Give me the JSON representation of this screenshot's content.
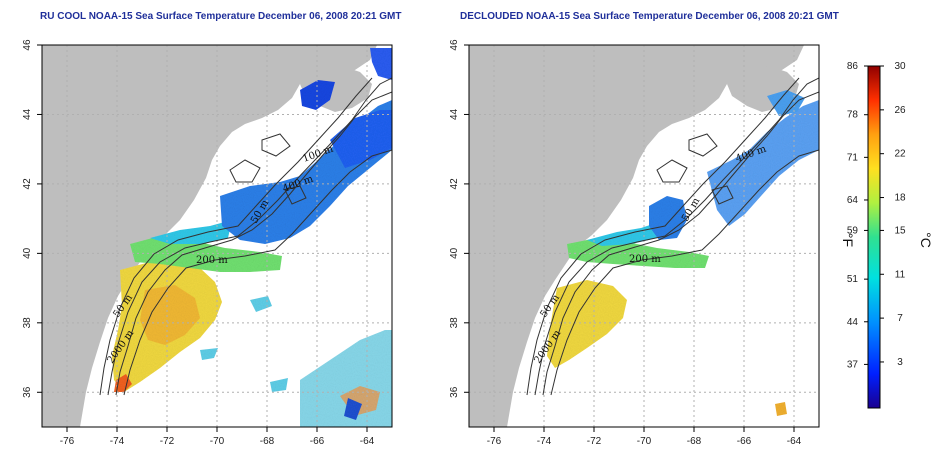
{
  "panels": [
    {
      "id": "left",
      "title": "RU COOL NOAA-15 Sea Surface Temperature December 06, 2008 20:21 GMT",
      "contour_labels": [
        {
          "text": "200 m"
        },
        {
          "text": "50 m"
        },
        {
          "text": "2000 m"
        },
        {
          "text": "100 m"
        },
        {
          "text": "400 m"
        },
        {
          "text": "50 m"
        }
      ]
    },
    {
      "id": "right",
      "title": "DECLOUDED NOAA-15 Sea Surface Temperature December 06, 2008 20:21 GMT",
      "contour_labels": [
        {
          "text": "200 m"
        },
        {
          "text": "50 m"
        },
        {
          "text": "2000 m"
        },
        {
          "text": "400 m"
        },
        {
          "text": "50 m"
        }
      ]
    }
  ],
  "axes": {
    "lon_ticks": [
      "-76",
      "-74",
      "-72",
      "-70",
      "-68",
      "-66",
      "-64"
    ],
    "lat_ticks": [
      "36",
      "38",
      "40",
      "42",
      "44",
      "46"
    ],
    "lon_range": [
      -77,
      -63
    ],
    "lat_range": [
      35,
      46
    ]
  },
  "colorbar": {
    "fahrenheit_ticks": [
      "86",
      "78",
      "71",
      "64",
      "59",
      "51",
      "44",
      "37"
    ],
    "celsius_ticks": [
      "30",
      "26",
      "22",
      "18",
      "15",
      "11",
      "7",
      "3"
    ],
    "fahrenheit_unit": "°F",
    "celsius_unit": "°C",
    "colors": [
      "#2a00b0",
      "#0040ff",
      "#00a0ff",
      "#00e0e0",
      "#40e080",
      "#c0f040",
      "#ffe020",
      "#ff9010",
      "#ff3000",
      "#a00000"
    ]
  },
  "colors": {
    "land": "#bebebe",
    "ocean": "#ffffff",
    "grid": "#b0b0b0",
    "title": "#1f2f9a"
  }
}
